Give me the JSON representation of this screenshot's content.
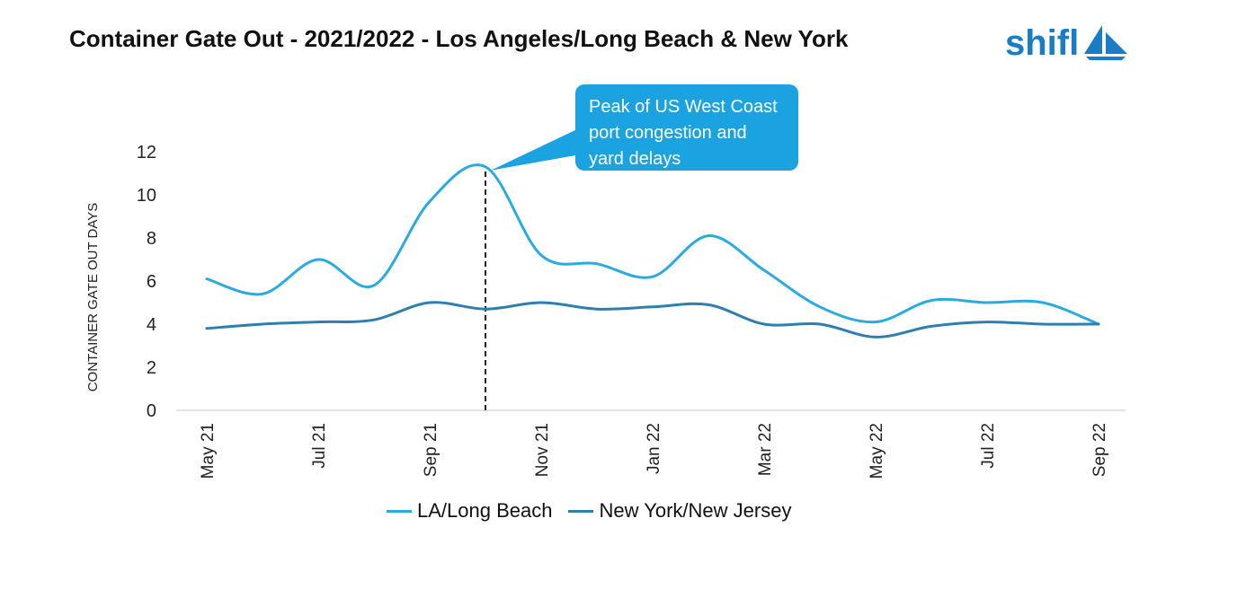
{
  "title": "Container Gate Out - 2021/2022 - Los Angeles/Long Beach & New York",
  "logo": {
    "text": "shifl",
    "icon": "sailboat-icon",
    "color": "#1a7cc4"
  },
  "callout": {
    "lines": [
      "Peak of US West Coast",
      "port congestion and",
      "yard delays"
    ],
    "color": "#1aa3e0"
  },
  "chart_data": {
    "type": "line",
    "ylabel": "CONTAINER GATE OUT DAYS",
    "xlabel": "",
    "ylim": [
      0,
      12
    ],
    "yticks": [
      0,
      2,
      4,
      6,
      8,
      10,
      12
    ],
    "categories": [
      "May 21",
      "Jun 21",
      "Jul 21",
      "Aug 21",
      "Sep 21",
      "Oct 21",
      "Nov 21",
      "Dec 21",
      "Jan 22",
      "Feb 22",
      "Mar 22",
      "Apr 22",
      "May 22",
      "Jun 22",
      "Jul 22",
      "Aug 22",
      "Sep 22"
    ],
    "tick_labels": [
      "May 21",
      "",
      "Jul 21",
      "",
      "Sep 21",
      "",
      "Nov 21",
      "",
      "Jan 22",
      "",
      "Mar 22",
      "",
      "May 22",
      "",
      "Jul 22",
      "",
      "Sep 22"
    ],
    "series": [
      {
        "name": "LA/Long Beach",
        "color": "#29abe2",
        "values": [
          6.1,
          5.4,
          7.0,
          5.8,
          9.7,
          11.3,
          7.2,
          6.8,
          6.2,
          8.1,
          6.5,
          4.8,
          4.1,
          5.1,
          5.0,
          5.0,
          4.0
        ]
      },
      {
        "name": "New York/New Jersey",
        "color": "#2e7fb0",
        "values": [
          3.8,
          4.0,
          4.1,
          4.2,
          5.0,
          4.7,
          5.0,
          4.7,
          4.8,
          4.9,
          4.0,
          4.0,
          3.4,
          3.9,
          4.1,
          4.0,
          4.0
        ]
      }
    ],
    "marker": {
      "category": "Oct 21",
      "style": "dashed"
    },
    "legend_position": "bottom",
    "grid": false
  }
}
